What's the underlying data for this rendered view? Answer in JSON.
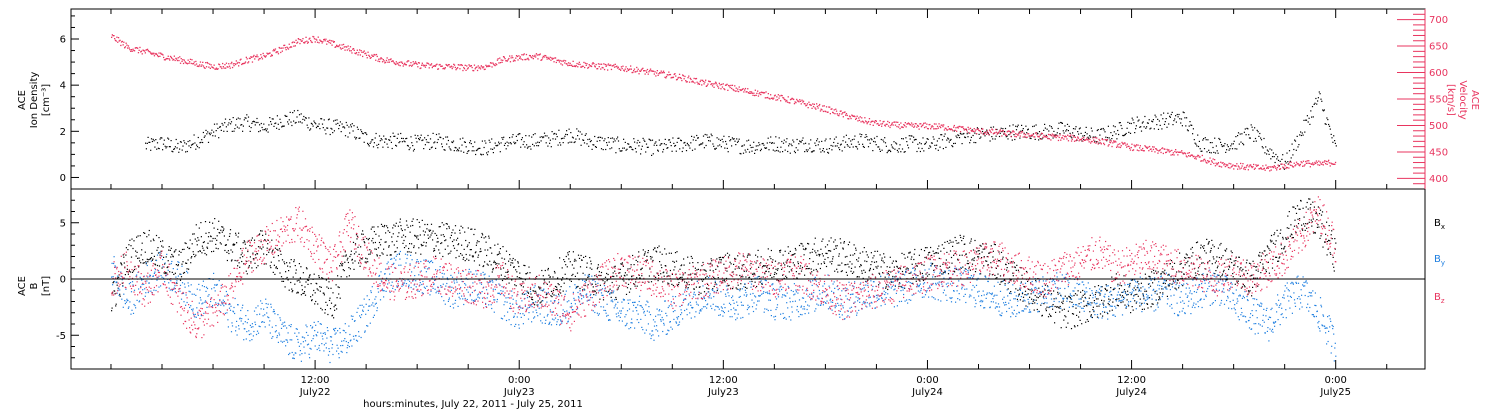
{
  "chart_data": [
    {
      "type": "scatter",
      "panel": "top",
      "ylabel_left": [
        "ACE",
        "Ion Density",
        "[cm⁻³]"
      ],
      "ylabel_right": [
        "ACE",
        "Velocity",
        "[km/s]"
      ],
      "ylim_left": [
        -0.5,
        7.3
      ],
      "yticks_left": [
        "0",
        "2",
        "4",
        "6"
      ],
      "ylim_right": [
        380,
        720
      ],
      "yticks_right": [
        "400",
        "450",
        "500",
        "550",
        "600",
        "650",
        "700"
      ],
      "x_units": "hours since 2011-07-22 00:00 UT",
      "series": [
        {
          "axis": "left",
          "color": "#000000",
          "x": [
            2,
            3,
            4,
            5,
            6,
            7,
            8,
            9,
            10,
            11,
            12,
            13,
            14,
            15,
            16,
            17,
            18,
            19,
            20,
            21,
            22,
            23,
            24,
            25,
            26,
            27,
            28,
            29,
            30,
            31,
            32,
            33,
            34,
            35,
            36,
            37,
            38,
            39,
            40,
            41,
            42,
            43,
            44,
            45,
            46,
            47,
            48,
            49,
            50,
            51,
            52,
            53,
            54,
            55,
            56,
            57,
            58,
            59,
            60,
            61,
            62,
            63,
            64,
            65,
            66,
            67,
            68,
            69,
            70,
            71,
            72
          ],
          "y": [
            1.4,
            1.5,
            1.3,
            1.6,
            2.0,
            2.3,
            2.4,
            2.2,
            2.5,
            2.6,
            2.3,
            2.2,
            2.1,
            1.7,
            1.6,
            1.6,
            1.5,
            1.6,
            1.5,
            1.4,
            1.3,
            1.5,
            1.6,
            1.6,
            1.7,
            1.9,
            1.6,
            1.5,
            1.4,
            1.4,
            1.3,
            1.4,
            1.5,
            1.6,
            1.5,
            1.4,
            1.4,
            1.5,
            1.4,
            1.5,
            1.4,
            1.5,
            1.6,
            1.5,
            1.4,
            1.5,
            1.4,
            1.6,
            1.8,
            1.9,
            1.9,
            2.0,
            2.0,
            2.0,
            2.1,
            1.9,
            1.8,
            2.0,
            2.3,
            2.4,
            2.5,
            2.6,
            1.5,
            1.4,
            1.5,
            2.0,
            1.2,
            0.6,
            2.0,
            3.5,
            1.2
          ]
        },
        {
          "axis": "right",
          "color": "#e8355f",
          "x": [
            0,
            1,
            2,
            3,
            4,
            5,
            6,
            7,
            8,
            9,
            10,
            11,
            12,
            13,
            14,
            15,
            16,
            17,
            18,
            19,
            20,
            21,
            22,
            23,
            24,
            25,
            26,
            27,
            28,
            29,
            30,
            31,
            32,
            33,
            34,
            35,
            36,
            37,
            38,
            39,
            40,
            41,
            42,
            43,
            44,
            45,
            46,
            47,
            48,
            49,
            50,
            51,
            52,
            53,
            54,
            55,
            56,
            57,
            58,
            59,
            60,
            61,
            62,
            63,
            64,
            65,
            66,
            67,
            68,
            69,
            70,
            71,
            72
          ],
          "y": [
            670,
            648,
            640,
            632,
            625,
            618,
            612,
            615,
            625,
            632,
            645,
            660,
            665,
            655,
            645,
            635,
            625,
            620,
            615,
            613,
            612,
            610,
            612,
            625,
            630,
            632,
            625,
            618,
            615,
            612,
            610,
            605,
            600,
            595,
            588,
            580,
            575,
            568,
            562,
            555,
            548,
            540,
            532,
            522,
            512,
            505,
            502,
            500,
            500,
            498,
            494,
            490,
            488,
            485,
            483,
            480,
            478,
            476,
            472,
            466,
            460,
            456,
            452,
            448,
            440,
            430,
            425,
            422,
            420,
            425,
            430,
            428,
            432
          ]
        }
      ]
    },
    {
      "type": "scatter",
      "panel": "bottom",
      "ylabel_left": [
        "ACE",
        "B",
        "[nT]"
      ],
      "ylim": [
        -8,
        8
      ],
      "yticks": [
        "-5",
        "0",
        "5"
      ],
      "zero_line": true,
      "legend": [
        "B",
        "B",
        "B"
      ],
      "legend_subscripts": [
        "x",
        "y",
        "z"
      ],
      "legend_position": "right",
      "x_units": "hours since 2011-07-22 00:00 UT",
      "series": [
        {
          "color": "#000000",
          "x": [
            0,
            1,
            2,
            3,
            4,
            5,
            6,
            7,
            8,
            9,
            10,
            11,
            12,
            13,
            14,
            15,
            16,
            17,
            18,
            19,
            20,
            21,
            22,
            23,
            24,
            25,
            26,
            27,
            28,
            29,
            30,
            31,
            32,
            33,
            34,
            35,
            36,
            37,
            38,
            39,
            40,
            41,
            42,
            43,
            44,
            45,
            46,
            47,
            48,
            49,
            50,
            51,
            52,
            53,
            54,
            55,
            56,
            57,
            58,
            59,
            60,
            61,
            62,
            63,
            64,
            65,
            66,
            67,
            68,
            69,
            70,
            71,
            72
          ],
          "y": [
            -2,
            2,
            3,
            2,
            1,
            3.5,
            4,
            3,
            2,
            3,
            1,
            0,
            -1,
            -2,
            2,
            3,
            3.5,
            3.8,
            3.8,
            3.6,
            3.4,
            3.2,
            2.5,
            1.5,
            0.5,
            -1,
            0,
            1,
            0.5,
            -0.5,
            0,
            1,
            1.5,
            1,
            0.5,
            0,
            1,
            0.5,
            1,
            1.5,
            1.5,
            2,
            2.5,
            2,
            1.5,
            1,
            0.5,
            1,
            1.5,
            2,
            2.5,
            2,
            1.5,
            0,
            -1,
            -2,
            -3,
            -2.5,
            -2,
            -1,
            -1.5,
            -1,
            0,
            1,
            2,
            2,
            1,
            0,
            2,
            4,
            6,
            5,
            2
          ]
        },
        {
          "color": "#1f7fe0",
          "x": [
            0,
            1,
            2,
            3,
            4,
            5,
            6,
            7,
            8,
            9,
            10,
            11,
            12,
            13,
            14,
            15,
            16,
            17,
            18,
            19,
            20,
            21,
            22,
            23,
            24,
            25,
            26,
            27,
            28,
            29,
            30,
            31,
            32,
            33,
            34,
            35,
            36,
            37,
            38,
            39,
            40,
            41,
            42,
            43,
            44,
            45,
            46,
            47,
            48,
            49,
            50,
            51,
            52,
            53,
            54,
            55,
            56,
            57,
            58,
            59,
            60,
            61,
            62,
            63,
            64,
            65,
            66,
            67,
            68,
            69,
            70,
            71,
            72
          ],
          "y": [
            1,
            -2,
            0,
            1,
            0,
            -2,
            -1,
            -3,
            -4,
            -3,
            -5,
            -6,
            -5,
            -6,
            -5,
            -3,
            0,
            1,
            0.5,
            0,
            -1,
            -0.5,
            -1,
            -2,
            -3,
            -2,
            -3,
            -2,
            -1,
            -2,
            -3,
            -3,
            -4,
            -3,
            -2,
            -1,
            -2,
            -2,
            -1,
            -2,
            -2,
            -1.5,
            -1,
            -2,
            -1.5,
            -1,
            -1,
            -0.5,
            0,
            -0.5,
            -0.5,
            -1,
            -1.5,
            -2,
            -1.5,
            -1,
            -1,
            -1.5,
            -2,
            -2,
            -1,
            -1.5,
            -1,
            -2,
            -1,
            -0.5,
            -2,
            -3,
            -4,
            -2,
            -1,
            -3,
            -6
          ]
        },
        {
          "color": "#e8355f",
          "x": [
            0,
            1,
            2,
            3,
            4,
            5,
            6,
            7,
            8,
            9,
            10,
            11,
            12,
            13,
            14,
            15,
            16,
            17,
            18,
            19,
            20,
            21,
            22,
            23,
            24,
            25,
            26,
            27,
            28,
            29,
            30,
            31,
            32,
            33,
            34,
            35,
            36,
            37,
            38,
            39,
            40,
            41,
            42,
            43,
            44,
            45,
            46,
            47,
            48,
            49,
            50,
            51,
            52,
            53,
            54,
            55,
            56,
            57,
            58,
            59,
            60,
            61,
            62,
            63,
            64,
            65,
            66,
            67,
            68,
            69,
            70,
            71,
            72
          ],
          "y": [
            0,
            1,
            -1,
            1,
            -2,
            -4,
            -3,
            -1,
            2,
            3,
            4,
            5,
            3,
            1,
            5,
            2,
            0,
            -0.5,
            0,
            0.5,
            0,
            -0.5,
            -1,
            0,
            -2,
            -1,
            -2,
            -3,
            -1.5,
            0,
            1,
            0.5,
            0,
            -1,
            -0.5,
            0,
            0.5,
            1,
            0.5,
            0,
            1,
            0,
            -1,
            -2,
            -1.5,
            -1,
            -0.5,
            0,
            0.5,
            1,
            1,
            1.5,
            2,
            1,
            0.5,
            0,
            1,
            1.5,
            2.5,
            1,
            1.5,
            2,
            1.5,
            1,
            0.5,
            0,
            1,
            0,
            1,
            2,
            4,
            6,
            3
          ]
        }
      ]
    }
  ],
  "x_axis": {
    "ticks": [
      {
        "time": "12:00",
        "date": "July22"
      },
      {
        "time": "0:00",
        "date": "July23"
      },
      {
        "time": "12:00",
        "date": "July23"
      },
      {
        "time": "0:00",
        "date": "July24"
      },
      {
        "time": "12:00",
        "date": "July24"
      },
      {
        "time": "0:00",
        "date": "July25"
      }
    ],
    "label": "hours:minutes, July 22, 2011 - July 25, 2011",
    "xlim_hours": [
      -2.35,
      77.25
    ]
  },
  "colors": {
    "black": "#000000",
    "red": "#e8355f",
    "blue": "#1f7fe0"
  }
}
